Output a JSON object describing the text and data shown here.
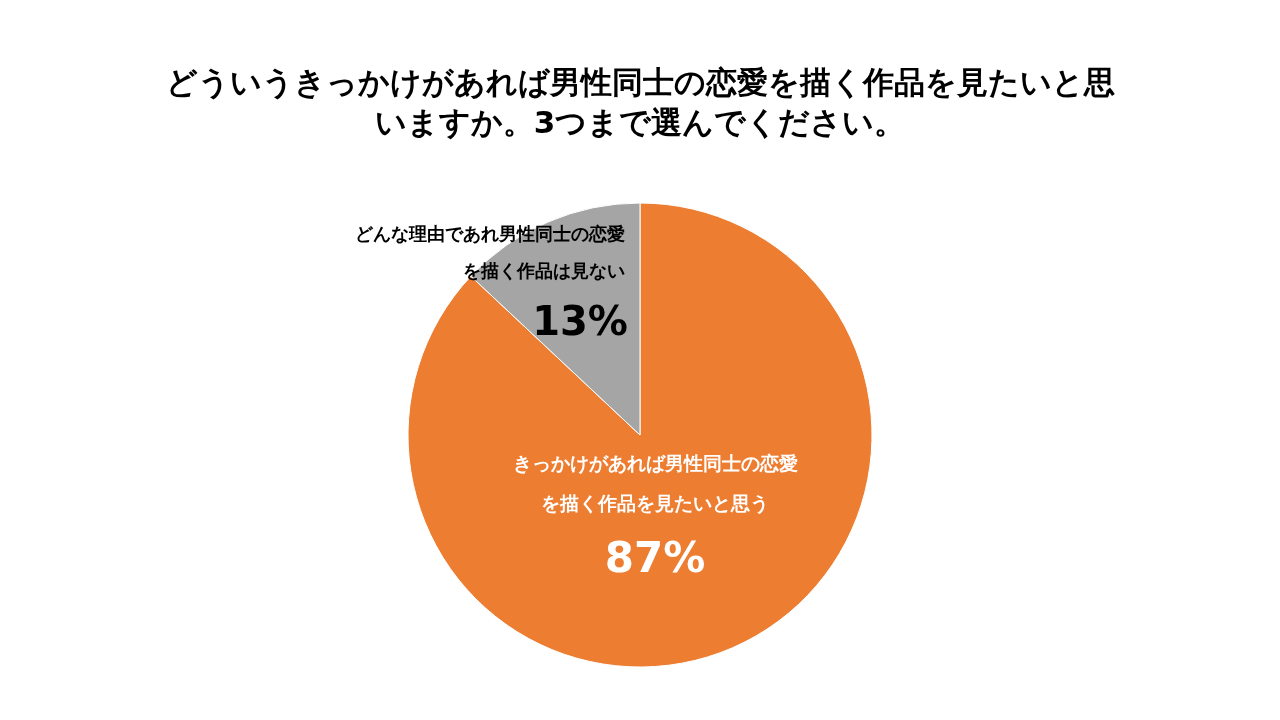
{
  "chart_data": {
    "type": "pie",
    "title": "どういうきっかけがあれば男性同士の恋愛を描く作品を見たいと思いますか。3つまで選んでください。",
    "categories": [
      "きっかけがあれば男性同士の恋愛を描く作品を見たいと思う",
      "どんな理由であれ男性同士の恋愛を描く作品は見ない"
    ],
    "values": [
      87,
      13
    ],
    "colors": [
      "#ed7d31",
      "#a5a5a5"
    ],
    "value_labels": [
      "87%",
      "13%"
    ],
    "legend": false
  }
}
